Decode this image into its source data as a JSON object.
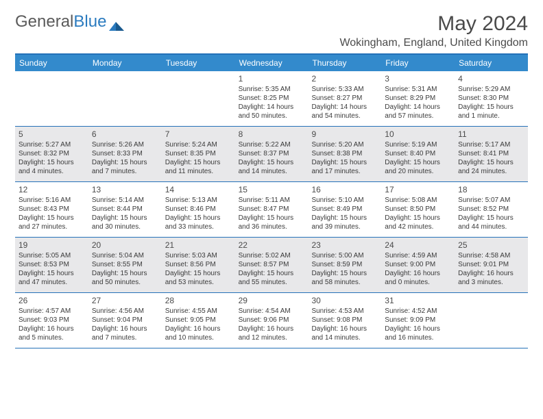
{
  "brand": {
    "part1": "General",
    "part2": "Blue"
  },
  "title": "May 2024",
  "location": "Wokingham, England, United Kingdom",
  "colors": {
    "header_bg": "#338acc",
    "border": "#2471b8",
    "alt_row": "#e8e8ea",
    "text": "#3a3a3a",
    "title_text": "#4a4a4a"
  },
  "day_names": [
    "Sunday",
    "Monday",
    "Tuesday",
    "Wednesday",
    "Thursday",
    "Friday",
    "Saturday"
  ],
  "weeks": [
    [
      {
        "day": "",
        "sunrise": "",
        "sunset": "",
        "daylight1": "",
        "daylight2": ""
      },
      {
        "day": "",
        "sunrise": "",
        "sunset": "",
        "daylight1": "",
        "daylight2": ""
      },
      {
        "day": "",
        "sunrise": "",
        "sunset": "",
        "daylight1": "",
        "daylight2": ""
      },
      {
        "day": "1",
        "sunrise": "Sunrise: 5:35 AM",
        "sunset": "Sunset: 8:25 PM",
        "daylight1": "Daylight: 14 hours",
        "daylight2": "and 50 minutes."
      },
      {
        "day": "2",
        "sunrise": "Sunrise: 5:33 AM",
        "sunset": "Sunset: 8:27 PM",
        "daylight1": "Daylight: 14 hours",
        "daylight2": "and 54 minutes."
      },
      {
        "day": "3",
        "sunrise": "Sunrise: 5:31 AM",
        "sunset": "Sunset: 8:29 PM",
        "daylight1": "Daylight: 14 hours",
        "daylight2": "and 57 minutes."
      },
      {
        "day": "4",
        "sunrise": "Sunrise: 5:29 AM",
        "sunset": "Sunset: 8:30 PM",
        "daylight1": "Daylight: 15 hours",
        "daylight2": "and 1 minute."
      }
    ],
    [
      {
        "day": "5",
        "sunrise": "Sunrise: 5:27 AM",
        "sunset": "Sunset: 8:32 PM",
        "daylight1": "Daylight: 15 hours",
        "daylight2": "and 4 minutes."
      },
      {
        "day": "6",
        "sunrise": "Sunrise: 5:26 AM",
        "sunset": "Sunset: 8:33 PM",
        "daylight1": "Daylight: 15 hours",
        "daylight2": "and 7 minutes."
      },
      {
        "day": "7",
        "sunrise": "Sunrise: 5:24 AM",
        "sunset": "Sunset: 8:35 PM",
        "daylight1": "Daylight: 15 hours",
        "daylight2": "and 11 minutes."
      },
      {
        "day": "8",
        "sunrise": "Sunrise: 5:22 AM",
        "sunset": "Sunset: 8:37 PM",
        "daylight1": "Daylight: 15 hours",
        "daylight2": "and 14 minutes."
      },
      {
        "day": "9",
        "sunrise": "Sunrise: 5:20 AM",
        "sunset": "Sunset: 8:38 PM",
        "daylight1": "Daylight: 15 hours",
        "daylight2": "and 17 minutes."
      },
      {
        "day": "10",
        "sunrise": "Sunrise: 5:19 AM",
        "sunset": "Sunset: 8:40 PM",
        "daylight1": "Daylight: 15 hours",
        "daylight2": "and 20 minutes."
      },
      {
        "day": "11",
        "sunrise": "Sunrise: 5:17 AM",
        "sunset": "Sunset: 8:41 PM",
        "daylight1": "Daylight: 15 hours",
        "daylight2": "and 24 minutes."
      }
    ],
    [
      {
        "day": "12",
        "sunrise": "Sunrise: 5:16 AM",
        "sunset": "Sunset: 8:43 PM",
        "daylight1": "Daylight: 15 hours",
        "daylight2": "and 27 minutes."
      },
      {
        "day": "13",
        "sunrise": "Sunrise: 5:14 AM",
        "sunset": "Sunset: 8:44 PM",
        "daylight1": "Daylight: 15 hours",
        "daylight2": "and 30 minutes."
      },
      {
        "day": "14",
        "sunrise": "Sunrise: 5:13 AM",
        "sunset": "Sunset: 8:46 PM",
        "daylight1": "Daylight: 15 hours",
        "daylight2": "and 33 minutes."
      },
      {
        "day": "15",
        "sunrise": "Sunrise: 5:11 AM",
        "sunset": "Sunset: 8:47 PM",
        "daylight1": "Daylight: 15 hours",
        "daylight2": "and 36 minutes."
      },
      {
        "day": "16",
        "sunrise": "Sunrise: 5:10 AM",
        "sunset": "Sunset: 8:49 PM",
        "daylight1": "Daylight: 15 hours",
        "daylight2": "and 39 minutes."
      },
      {
        "day": "17",
        "sunrise": "Sunrise: 5:08 AM",
        "sunset": "Sunset: 8:50 PM",
        "daylight1": "Daylight: 15 hours",
        "daylight2": "and 42 minutes."
      },
      {
        "day": "18",
        "sunrise": "Sunrise: 5:07 AM",
        "sunset": "Sunset: 8:52 PM",
        "daylight1": "Daylight: 15 hours",
        "daylight2": "and 44 minutes."
      }
    ],
    [
      {
        "day": "19",
        "sunrise": "Sunrise: 5:05 AM",
        "sunset": "Sunset: 8:53 PM",
        "daylight1": "Daylight: 15 hours",
        "daylight2": "and 47 minutes."
      },
      {
        "day": "20",
        "sunrise": "Sunrise: 5:04 AM",
        "sunset": "Sunset: 8:55 PM",
        "daylight1": "Daylight: 15 hours",
        "daylight2": "and 50 minutes."
      },
      {
        "day": "21",
        "sunrise": "Sunrise: 5:03 AM",
        "sunset": "Sunset: 8:56 PM",
        "daylight1": "Daylight: 15 hours",
        "daylight2": "and 53 minutes."
      },
      {
        "day": "22",
        "sunrise": "Sunrise: 5:02 AM",
        "sunset": "Sunset: 8:57 PM",
        "daylight1": "Daylight: 15 hours",
        "daylight2": "and 55 minutes."
      },
      {
        "day": "23",
        "sunrise": "Sunrise: 5:00 AM",
        "sunset": "Sunset: 8:59 PM",
        "daylight1": "Daylight: 15 hours",
        "daylight2": "and 58 minutes."
      },
      {
        "day": "24",
        "sunrise": "Sunrise: 4:59 AM",
        "sunset": "Sunset: 9:00 PM",
        "daylight1": "Daylight: 16 hours",
        "daylight2": "and 0 minutes."
      },
      {
        "day": "25",
        "sunrise": "Sunrise: 4:58 AM",
        "sunset": "Sunset: 9:01 PM",
        "daylight1": "Daylight: 16 hours",
        "daylight2": "and 3 minutes."
      }
    ],
    [
      {
        "day": "26",
        "sunrise": "Sunrise: 4:57 AM",
        "sunset": "Sunset: 9:03 PM",
        "daylight1": "Daylight: 16 hours",
        "daylight2": "and 5 minutes."
      },
      {
        "day": "27",
        "sunrise": "Sunrise: 4:56 AM",
        "sunset": "Sunset: 9:04 PM",
        "daylight1": "Daylight: 16 hours",
        "daylight2": "and 7 minutes."
      },
      {
        "day": "28",
        "sunrise": "Sunrise: 4:55 AM",
        "sunset": "Sunset: 9:05 PM",
        "daylight1": "Daylight: 16 hours",
        "daylight2": "and 10 minutes."
      },
      {
        "day": "29",
        "sunrise": "Sunrise: 4:54 AM",
        "sunset": "Sunset: 9:06 PM",
        "daylight1": "Daylight: 16 hours",
        "daylight2": "and 12 minutes."
      },
      {
        "day": "30",
        "sunrise": "Sunrise: 4:53 AM",
        "sunset": "Sunset: 9:08 PM",
        "daylight1": "Daylight: 16 hours",
        "daylight2": "and 14 minutes."
      },
      {
        "day": "31",
        "sunrise": "Sunrise: 4:52 AM",
        "sunset": "Sunset: 9:09 PM",
        "daylight1": "Daylight: 16 hours",
        "daylight2": "and 16 minutes."
      },
      {
        "day": "",
        "sunrise": "",
        "sunset": "",
        "daylight1": "",
        "daylight2": ""
      }
    ]
  ]
}
